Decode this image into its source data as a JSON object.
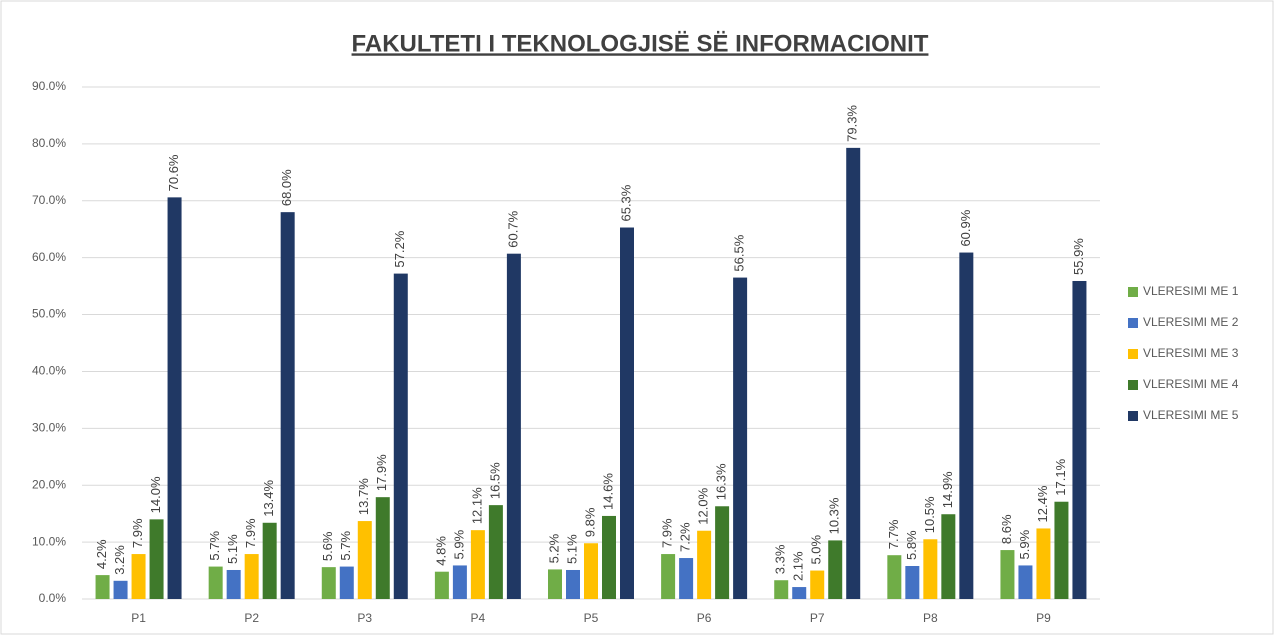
{
  "chart_data": {
    "type": "bar",
    "title": "FAKULTETI I TEKNOLOGJISË SË INFORMACIONIT",
    "categories": [
      "P1",
      "P2",
      "P3",
      "P4",
      "P5",
      "P6",
      "P7",
      "P8",
      "P9"
    ],
    "series": [
      {
        "name": "VLERESIMI ME 1",
        "color": "#70ad47",
        "values": [
          4.2,
          5.7,
          5.6,
          4.8,
          5.2,
          7.9,
          3.3,
          7.7,
          8.6
        ],
        "value_labels": [
          "4.2%",
          "5.7%",
          "5.6%",
          "4.8%",
          "5.2%",
          "7.9%",
          "3.3%",
          "7.7%",
          "8.6%"
        ]
      },
      {
        "name": "VLERESIMI ME 2",
        "color": "#4472c4",
        "values": [
          3.2,
          5.1,
          5.7,
          5.9,
          5.1,
          7.2,
          2.1,
          5.8,
          5.9
        ],
        "value_labels": [
          "3.2%",
          "5.1%",
          "5.7%",
          "5.9%",
          "5.1%",
          "7.2%",
          "2.1%",
          "5.8%",
          "5.9%"
        ]
      },
      {
        "name": "VLERESIMI ME 3",
        "color": "#ffc000",
        "values": [
          7.9,
          7.9,
          13.7,
          12.1,
          9.8,
          12.0,
          5.0,
          10.5,
          12.4
        ],
        "value_labels": [
          "7.9%",
          "7.9%",
          "13.7%",
          "12.1%",
          "9.8%",
          "12.0%",
          "5.0%",
          "10.5%",
          "12.4%"
        ]
      },
      {
        "name": "VLERESIMI ME 4",
        "color": "#3f7a2b",
        "values": [
          14.0,
          13.4,
          17.9,
          16.5,
          14.6,
          16.3,
          10.3,
          14.9,
          17.1
        ],
        "value_labels": [
          "14.0%",
          "13.4%",
          "17.9%",
          "16.5%",
          "14.6%",
          "16.3%",
          "10.3%",
          "14.9%",
          "17.1%"
        ]
      },
      {
        "name": "VLERESIMI ME 5",
        "color": "#203864",
        "values": [
          70.6,
          68.0,
          57.2,
          60.7,
          65.3,
          56.5,
          79.3,
          60.9,
          55.9
        ],
        "value_labels": [
          "70.6%",
          "68.0%",
          "57.2%",
          "60.7%",
          "65.3%",
          "56.5%",
          "79.3%",
          "60.9%",
          "55.9%"
        ]
      }
    ],
    "ylim": [
      0,
      90
    ],
    "yticks": [
      {
        "value": 0,
        "label": "0.0%"
      },
      {
        "value": 10,
        "label": "10.0%"
      },
      {
        "value": 20,
        "label": "20.0%"
      },
      {
        "value": 30,
        "label": "30.0%"
      },
      {
        "value": 40,
        "label": "40.0%"
      },
      {
        "value": 50,
        "label": "50.0%"
      },
      {
        "value": 60,
        "label": "60.0%"
      },
      {
        "value": 70,
        "label": "70.0%"
      },
      {
        "value": 80,
        "label": "80.0%"
      },
      {
        "value": 90,
        "label": "90.0%"
      }
    ],
    "grid": true,
    "legend": "right"
  }
}
